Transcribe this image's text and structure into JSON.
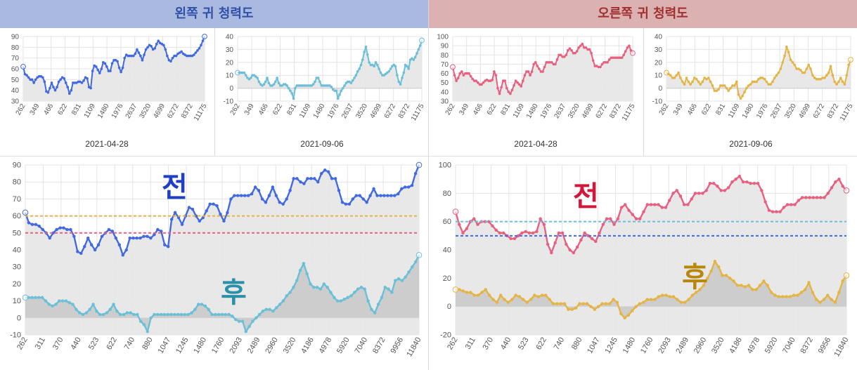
{
  "header": {
    "left_title": "왼쪽 귀 청력도",
    "right_title": "오른쪽 귀 청력도"
  },
  "colors": {
    "left_bg": "#a9b9e0",
    "left_text": "#2f4fa8",
    "right_bg": "#dcb1b1",
    "right_text": "#a02f2f",
    "blue": "#4169e1",
    "cyan": "#6bbfd6",
    "pink": "#e8607f",
    "gold": "#e4b444",
    "fill_light": "#e6e6e6",
    "fill_dark": "#c8c8c8"
  },
  "labels": {
    "before": "전",
    "after": "후"
  },
  "chart_data": [
    {
      "id": "small-left-before",
      "type": "area",
      "date": "2021-04-28",
      "ylim": [
        30,
        90
      ],
      "yticks": [
        30,
        40,
        50,
        60,
        70,
        80,
        90
      ],
      "xticks": [
        "262",
        "349",
        "466",
        "622",
        "831",
        "1109",
        "1480",
        "1976",
        "2637",
        "3520",
        "4699",
        "6272",
        "8372",
        "11175"
      ],
      "series": [
        {
          "color": "blue",
          "values": [
            62,
            55,
            54,
            52,
            50,
            50,
            47,
            50,
            52,
            53,
            53,
            52,
            48,
            39,
            38,
            42,
            47,
            43,
            40,
            43,
            48,
            50,
            52,
            51,
            47,
            43,
            37,
            40,
            47,
            47,
            47,
            48,
            48,
            47,
            49,
            52,
            51,
            43,
            42,
            58,
            63,
            62,
            59,
            56,
            60,
            66,
            65,
            62,
            58,
            58,
            65,
            68,
            68,
            67,
            61,
            57,
            61,
            70,
            73,
            72,
            72,
            72,
            72,
            74,
            78,
            75,
            72,
            68,
            73,
            78,
            80,
            82,
            81,
            78,
            79,
            83,
            86,
            84,
            83,
            82,
            78,
            72,
            68,
            67,
            70,
            72,
            72,
            74,
            75,
            76,
            74,
            73,
            72,
            72,
            72,
            72,
            73,
            75,
            77,
            79,
            82,
            86,
            90
          ]
        }
      ]
    },
    {
      "id": "small-left-after",
      "type": "area",
      "date": "2021-09-06",
      "ylim": [
        -10,
        40
      ],
      "yticks": [
        -10,
        0,
        10,
        20,
        30,
        40
      ],
      "xticks": [
        "262",
        "349",
        "466",
        "622",
        "831",
        "1109",
        "1480",
        "1976",
        "2637",
        "3520",
        "4699",
        "6272",
        "8372",
        "11175"
      ],
      "series": [
        {
          "color": "cyan",
          "values": [
            12,
            12,
            12,
            12,
            12,
            10,
            8,
            7,
            8,
            10,
            10,
            9,
            8,
            5,
            3,
            2,
            3,
            5,
            8,
            4,
            2,
            2,
            3,
            5,
            8,
            4,
            2,
            2,
            3,
            3,
            2,
            0,
            -2,
            -4,
            -8,
            0,
            2,
            2,
            2,
            2,
            2,
            2,
            2,
            2,
            2,
            2,
            3,
            5,
            8,
            8,
            5,
            2,
            2,
            2,
            2,
            2,
            2,
            1,
            -1,
            -2,
            -2,
            -8,
            -5,
            -2,
            0,
            2,
            4,
            5,
            5,
            4,
            6,
            8,
            10,
            13,
            15,
            18,
            22,
            28,
            32,
            26,
            20,
            18,
            18,
            17,
            20,
            18,
            15,
            12,
            10,
            10,
            11,
            12,
            13,
            15,
            17,
            18,
            17,
            10,
            5,
            3,
            8,
            12,
            18,
            17,
            15,
            22,
            23,
            22,
            24,
            27,
            30,
            33,
            37
          ]
        }
      ]
    },
    {
      "id": "small-right-before",
      "type": "area",
      "date": "2021-04-28",
      "ylim": [
        30,
        100
      ],
      "yticks": [
        30,
        40,
        50,
        60,
        70,
        80,
        90,
        100
      ],
      "xticks": [
        "262",
        "349",
        "466",
        "622",
        "831",
        "1109",
        "1480",
        "1976",
        "2637",
        "3520",
        "4699",
        "6272",
        "8372",
        "11175"
      ],
      "series": [
        {
          "color": "pink",
          "values": [
            67,
            58,
            52,
            55,
            60,
            62,
            58,
            60,
            60,
            60,
            57,
            54,
            52,
            52,
            50,
            48,
            48,
            50,
            52,
            53,
            52,
            52,
            53,
            62,
            58,
            44,
            38,
            45,
            52,
            52,
            44,
            40,
            38,
            42,
            47,
            52,
            50,
            48,
            46,
            52,
            58,
            62,
            62,
            58,
            62,
            70,
            72,
            68,
            65,
            62,
            62,
            67,
            72,
            72,
            72,
            72,
            70,
            70,
            75,
            80,
            80,
            78,
            78,
            80,
            85,
            87,
            85,
            82,
            82,
            84,
            88,
            90,
            92,
            88,
            88,
            86,
            86,
            82,
            74,
            68,
            68,
            67,
            67,
            70,
            72,
            72,
            72,
            75,
            77,
            77,
            77,
            77,
            77,
            77,
            77,
            80,
            84,
            88,
            90,
            85,
            82
          ]
        }
      ]
    },
    {
      "id": "small-right-after",
      "type": "area",
      "date": "2021-09-06",
      "ylim": [
        -10,
        40
      ],
      "yticks": [
        -10,
        0,
        10,
        20,
        30,
        40
      ],
      "xticks": [
        "262",
        "349",
        "466",
        "622",
        "831",
        "1109",
        "1480",
        "1976",
        "2637",
        "3520",
        "4699",
        "6272",
        "8372",
        "11175"
      ],
      "series": [
        {
          "color": "gold",
          "values": [
            12,
            11,
            10,
            8,
            8,
            10,
            12,
            8,
            5,
            3,
            8,
            5,
            3,
            5,
            8,
            7,
            5,
            3,
            5,
            8,
            7,
            8,
            5,
            2,
            -2,
            -2,
            -1,
            2,
            2,
            2,
            0,
            -2,
            0,
            2,
            2,
            5,
            -5,
            -8,
            -6,
            -3,
            0,
            2,
            3,
            5,
            5,
            5,
            7,
            8,
            8,
            7,
            5,
            3,
            3,
            5,
            8,
            10,
            12,
            15,
            20,
            25,
            32,
            28,
            22,
            20,
            18,
            15,
            15,
            14,
            12,
            12,
            15,
            18,
            15,
            10,
            8,
            7,
            7,
            7,
            8,
            8,
            10,
            12,
            17,
            10,
            5,
            3,
            5,
            8,
            5,
            3,
            10,
            18,
            22
          ]
        }
      ]
    },
    {
      "id": "big-left",
      "type": "area",
      "ylim": [
        -10,
        90
      ],
      "yticks": [
        -10,
        0,
        10,
        20,
        30,
        40,
        50,
        60,
        70,
        80,
        90
      ],
      "xticks": [
        "262",
        "311",
        "370",
        "440",
        "523",
        "622",
        "740",
        "880",
        "1047",
        "1245",
        "1480",
        "1760",
        "2093",
        "2489",
        "2960",
        "3520",
        "4186",
        "4978",
        "5920",
        "7040",
        "8372",
        "9956",
        "11840"
      ],
      "reference_lines": [
        {
          "value": 60,
          "color": "gold"
        },
        {
          "value": 50,
          "color": "pink"
        }
      ],
      "series": [
        {
          "color": "blue",
          "values": [
            62,
            56,
            55,
            55,
            54,
            52,
            50,
            47,
            50,
            52,
            53,
            53,
            52,
            52,
            48,
            39,
            38,
            42,
            47,
            43,
            40,
            43,
            48,
            50,
            52,
            51,
            47,
            43,
            37,
            40,
            47,
            47,
            47,
            47,
            48,
            48,
            47,
            49,
            52,
            51,
            43,
            42,
            58,
            62,
            59,
            55,
            60,
            65,
            64,
            60,
            57,
            59,
            63,
            67,
            67,
            66,
            61,
            57,
            62,
            70,
            72,
            72,
            72,
            72,
            72,
            73,
            77,
            75,
            70,
            68,
            72,
            77,
            72,
            68,
            67,
            70,
            75,
            82,
            82,
            80,
            79,
            82,
            82,
            82,
            80,
            85,
            87,
            86,
            82,
            82,
            75,
            68,
            67,
            67,
            70,
            72,
            72,
            70,
            68,
            72,
            76,
            72,
            72,
            72,
            72,
            72,
            72,
            73,
            76,
            77,
            77,
            78,
            85,
            90
          ]
        },
        {
          "color": "cyan",
          "values": [
            12,
            12,
            12,
            12,
            12,
            12,
            10,
            8,
            7,
            8,
            10,
            10,
            10,
            9,
            8,
            5,
            3,
            2,
            3,
            5,
            8,
            4,
            2,
            2,
            3,
            5,
            8,
            4,
            2,
            2,
            3,
            3,
            2,
            2,
            -2,
            -4,
            -8,
            0,
            2,
            2,
            2,
            2,
            2,
            2,
            2,
            2,
            2,
            2,
            2,
            3,
            5,
            8,
            8,
            7,
            5,
            2,
            2,
            2,
            2,
            2,
            2,
            1,
            -1,
            -2,
            -2,
            -8,
            -5,
            -2,
            0,
            2,
            4,
            5,
            5,
            4,
            6,
            8,
            10,
            13,
            15,
            18,
            22,
            28,
            32,
            26,
            20,
            18,
            18,
            17,
            20,
            18,
            15,
            12,
            10,
            10,
            11,
            12,
            13,
            15,
            17,
            18,
            17,
            10,
            5,
            3,
            8,
            12,
            18,
            17,
            15,
            22,
            23,
            22,
            24,
            27,
            30,
            33,
            37
          ]
        }
      ]
    },
    {
      "id": "big-right",
      "type": "area",
      "ylim": [
        -20,
        100
      ],
      "yticks": [
        -20,
        0,
        20,
        40,
        60,
        80,
        100
      ],
      "xticks": [
        "262",
        "311",
        "370",
        "440",
        "523",
        "622",
        "740",
        "880",
        "1047",
        "1245",
        "1480",
        "1760",
        "2093",
        "2489",
        "2960",
        "3520",
        "4186",
        "4978",
        "5920",
        "7040",
        "8372",
        "9956",
        "11840"
      ],
      "reference_lines": [
        {
          "value": 60,
          "color": "cyan"
        },
        {
          "value": 50,
          "color": "blue"
        }
      ],
      "series": [
        {
          "color": "pink",
          "values": [
            67,
            58,
            52,
            55,
            60,
            62,
            58,
            60,
            60,
            60,
            57,
            54,
            52,
            52,
            50,
            48,
            48,
            50,
            52,
            53,
            52,
            52,
            53,
            62,
            58,
            44,
            38,
            45,
            52,
            52,
            44,
            40,
            38,
            42,
            47,
            52,
            50,
            48,
            46,
            52,
            58,
            62,
            62,
            58,
            62,
            70,
            72,
            68,
            65,
            62,
            62,
            67,
            72,
            72,
            72,
            72,
            70,
            70,
            75,
            80,
            82,
            78,
            72,
            72,
            76,
            80,
            80,
            80,
            82,
            87,
            87,
            85,
            82,
            82,
            84,
            88,
            90,
            92,
            88,
            88,
            87,
            87,
            87,
            82,
            74,
            68,
            67,
            67,
            67,
            70,
            72,
            72,
            72,
            75,
            77,
            77,
            77,
            77,
            77,
            77,
            77,
            80,
            84,
            88,
            90,
            85,
            82
          ]
        },
        {
          "color": "gold",
          "values": [
            12,
            12,
            11,
            10,
            10,
            8,
            8,
            10,
            12,
            8,
            5,
            3,
            8,
            5,
            3,
            5,
            8,
            7,
            5,
            3,
            5,
            8,
            7,
            8,
            8,
            5,
            2,
            2,
            2,
            2,
            -2,
            -2,
            -1,
            2,
            2,
            2,
            0,
            -2,
            0,
            2,
            2,
            2,
            5,
            3,
            -5,
            -8,
            -6,
            -3,
            0,
            2,
            3,
            5,
            5,
            5,
            7,
            8,
            8,
            7,
            7,
            5,
            3,
            3,
            5,
            8,
            10,
            12,
            15,
            20,
            25,
            32,
            28,
            22,
            22,
            20,
            18,
            15,
            15,
            14,
            15,
            12,
            12,
            15,
            18,
            15,
            10,
            8,
            7,
            7,
            7,
            7,
            8,
            8,
            10,
            12,
            17,
            10,
            5,
            3,
            5,
            8,
            5,
            3,
            10,
            18,
            22
          ]
        }
      ]
    }
  ]
}
